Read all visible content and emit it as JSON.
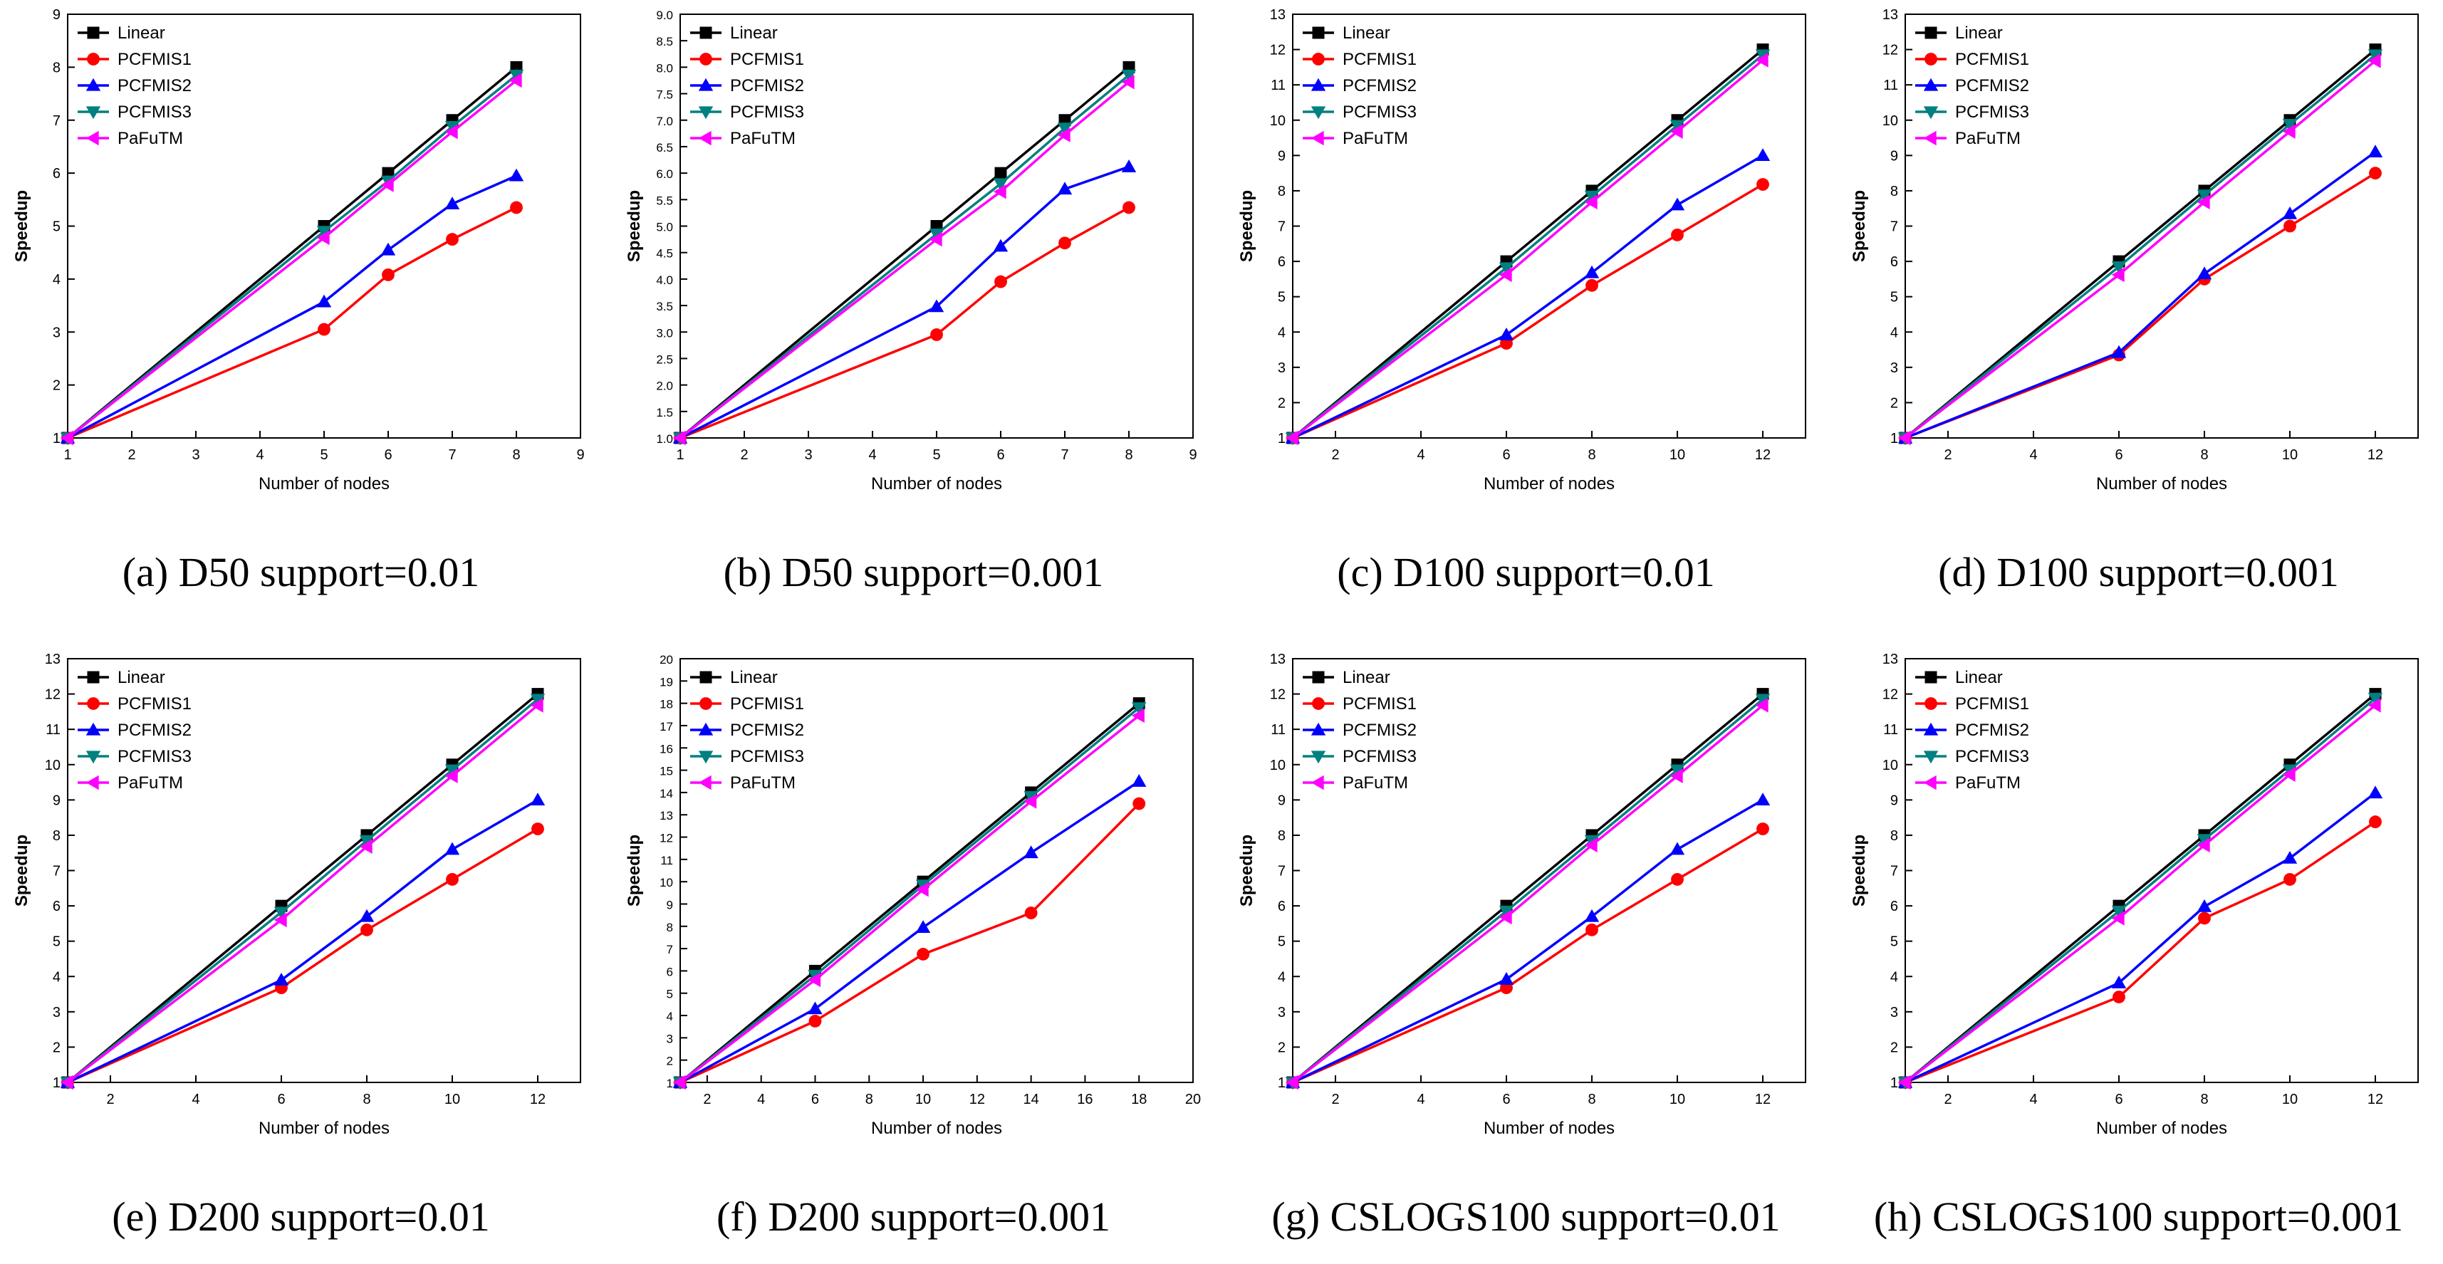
{
  "figure": {
    "legend_order": [
      "Linear",
      "PCFMIS1",
      "PCFMIS2",
      "PCFMIS3",
      "PaFuTM"
    ],
    "series_styles": {
      "Linear": {
        "color": "#000000",
        "marker": "square"
      },
      "PCFMIS1": {
        "color": "#ff0000",
        "marker": "circle"
      },
      "PCFMIS2": {
        "color": "#0000ff",
        "marker": "triangle-up"
      },
      "PCFMIS3": {
        "color": "#008080",
        "marker": "triangle-down"
      },
      "PaFuTM": {
        "color": "#ff00ff",
        "marker": "triangle-left"
      }
    }
  },
  "chart_data": [
    {
      "type": "line",
      "caption": "(a) D50 support=0.01",
      "xlabel": "Number of nodes",
      "ylabel": "Speedup",
      "xlim": [
        1,
        9
      ],
      "ylim": [
        1,
        9
      ],
      "xticks": [
        "1",
        "2",
        "3",
        "4",
        "5",
        "6",
        "7",
        "8",
        "9"
      ],
      "yticks": [
        "1",
        "2",
        "3",
        "4",
        "5",
        "6",
        "7",
        "8",
        "9"
      ],
      "x": [
        1,
        5,
        6,
        7,
        8
      ],
      "series": [
        {
          "name": "Linear",
          "values": [
            1,
            5,
            6,
            7,
            8
          ]
        },
        {
          "name": "PCFMIS1",
          "values": [
            1,
            3.05,
            4.08,
            4.75,
            5.35
          ]
        },
        {
          "name": "PCFMIS2",
          "values": [
            1,
            3.57,
            4.55,
            5.42,
            5.95
          ]
        },
        {
          "name": "PCFMIS3",
          "values": [
            1,
            4.9,
            5.85,
            6.88,
            7.85
          ]
        },
        {
          "name": "PaFuTM",
          "values": [
            1,
            4.78,
            5.78,
            6.78,
            7.75
          ]
        }
      ]
    },
    {
      "type": "line",
      "caption": "(b) D50 support=0.001",
      "xlabel": "Number of nodes",
      "ylabel": "Speedup",
      "xlim": [
        1,
        9
      ],
      "ylim": [
        1,
        9
      ],
      "xticks": [
        "1",
        "2",
        "3",
        "4",
        "5",
        "6",
        "7",
        "8",
        "9"
      ],
      "yticks": [
        "1.0",
        "1.5",
        "2.0",
        "2.5",
        "3.0",
        "3.5",
        "4.0",
        "4.5",
        "5.0",
        "5.5",
        "6.0",
        "6.5",
        "7.0",
        "7.5",
        "8.0",
        "8.5",
        "9.0"
      ],
      "x": [
        1,
        5,
        6,
        7,
        8
      ],
      "series": [
        {
          "name": "Linear",
          "values": [
            1,
            5,
            6,
            7,
            8
          ]
        },
        {
          "name": "PCFMIS1",
          "values": [
            1,
            2.95,
            3.95,
            4.68,
            5.35
          ]
        },
        {
          "name": "PCFMIS2",
          "values": [
            1,
            3.48,
            4.62,
            5.7,
            6.12
          ]
        },
        {
          "name": "PCFMIS3",
          "values": [
            1,
            4.85,
            5.8,
            6.85,
            7.85
          ]
        },
        {
          "name": "PaFuTM",
          "values": [
            1,
            4.75,
            5.65,
            6.72,
            7.72
          ]
        }
      ]
    },
    {
      "type": "line",
      "caption": "(c) D100 support=0.01",
      "xlabel": "Number of nodes",
      "ylabel": "Speedup",
      "xlim": [
        1,
        13
      ],
      "ylim": [
        1,
        13
      ],
      "xticks": [
        "2",
        "4",
        "6",
        "8",
        "10",
        "12"
      ],
      "yticks": [
        "1",
        "2",
        "3",
        "4",
        "5",
        "6",
        "7",
        "8",
        "9",
        "10",
        "11",
        "12",
        "13"
      ],
      "x": [
        1,
        6,
        8,
        10,
        12
      ],
      "series": [
        {
          "name": "Linear",
          "values": [
            1,
            6,
            8,
            10,
            12
          ]
        },
        {
          "name": "PCFMIS1",
          "values": [
            1,
            3.68,
            5.32,
            6.75,
            8.18
          ]
        },
        {
          "name": "PCFMIS2",
          "values": [
            1,
            3.92,
            5.68,
            7.6,
            9.0
          ]
        },
        {
          "name": "PCFMIS3",
          "values": [
            1,
            5.82,
            7.85,
            9.85,
            11.85
          ]
        },
        {
          "name": "PaFuTM",
          "values": [
            1,
            5.62,
            7.68,
            9.68,
            11.7
          ]
        }
      ]
    },
    {
      "type": "line",
      "caption": "(d) D100 support=0.001",
      "xlabel": "Number of nodes",
      "ylabel": "Speedup",
      "xlim": [
        1,
        13
      ],
      "ylim": [
        1,
        13
      ],
      "xticks": [
        "2",
        "4",
        "6",
        "8",
        "10",
        "12"
      ],
      "yticks": [
        "1",
        "2",
        "3",
        "4",
        "5",
        "6",
        "7",
        "8",
        "9",
        "10",
        "11",
        "12",
        "13"
      ],
      "x": [
        1,
        6,
        8,
        10,
        12
      ],
      "series": [
        {
          "name": "Linear",
          "values": [
            1,
            6,
            8,
            10,
            12
          ]
        },
        {
          "name": "PCFMIS1",
          "values": [
            1,
            3.35,
            5.5,
            7.0,
            8.5
          ]
        },
        {
          "name": "PCFMIS2",
          "values": [
            1,
            3.42,
            5.65,
            7.35,
            9.1
          ]
        },
        {
          "name": "PCFMIS3",
          "values": [
            1,
            5.85,
            7.88,
            9.88,
            11.85
          ]
        },
        {
          "name": "PaFuTM",
          "values": [
            1,
            5.62,
            7.68,
            9.68,
            11.68
          ]
        }
      ]
    },
    {
      "type": "line",
      "caption": "(e) D200 support=0.01",
      "xlabel": "Number of nodes",
      "ylabel": "Speedup",
      "xlim": [
        1,
        13
      ],
      "ylim": [
        1,
        13
      ],
      "xticks": [
        "2",
        "4",
        "6",
        "8",
        "10",
        "12"
      ],
      "yticks": [
        "1",
        "2",
        "3",
        "4",
        "5",
        "6",
        "7",
        "8",
        "9",
        "10",
        "11",
        "12",
        "13"
      ],
      "x": [
        1,
        6,
        8,
        10,
        12
      ],
      "series": [
        {
          "name": "Linear",
          "values": [
            1,
            6,
            8,
            10,
            12
          ]
        },
        {
          "name": "PCFMIS1",
          "values": [
            1,
            3.68,
            5.32,
            6.75,
            8.18
          ]
        },
        {
          "name": "PCFMIS2",
          "values": [
            1,
            3.9,
            5.7,
            7.6,
            9.0
          ]
        },
        {
          "name": "PCFMIS3",
          "values": [
            1,
            5.82,
            7.85,
            9.85,
            11.85
          ]
        },
        {
          "name": "PaFuTM",
          "values": [
            1,
            5.6,
            7.68,
            9.68,
            11.68
          ]
        }
      ]
    },
    {
      "type": "line",
      "caption": "(f) D200 support=0.001",
      "xlabel": "Number of nodes",
      "ylabel": "Speedup",
      "xlim": [
        1,
        20
      ],
      "ylim": [
        1,
        20
      ],
      "xticks": [
        "2",
        "4",
        "6",
        "8",
        "10",
        "12",
        "14",
        "16",
        "18",
        "20"
      ],
      "yticks": [
        "1",
        "2",
        "3",
        "4",
        "5",
        "6",
        "7",
        "8",
        "9",
        "10",
        "11",
        "12",
        "13",
        "14",
        "15",
        "16",
        "17",
        "18",
        "19",
        "20"
      ],
      "x": [
        1,
        6,
        10,
        14,
        18
      ],
      "series": [
        {
          "name": "Linear",
          "values": [
            1,
            6,
            10,
            14,
            18
          ]
        },
        {
          "name": "PCFMIS1",
          "values": [
            1,
            3.75,
            6.75,
            8.6,
            13.5
          ]
        },
        {
          "name": "PCFMIS2",
          "values": [
            1,
            4.3,
            7.95,
            11.3,
            14.5
          ]
        },
        {
          "name": "PCFMIS3",
          "values": [
            1,
            5.8,
            9.85,
            13.82,
            17.8
          ]
        },
        {
          "name": "PaFuTM",
          "values": [
            1,
            5.6,
            9.65,
            13.6,
            17.45
          ]
        }
      ]
    },
    {
      "type": "line",
      "caption": "(g) CSLOGS100 support=0.01",
      "xlabel": "Number of nodes",
      "ylabel": "Speedup",
      "xlim": [
        1,
        13
      ],
      "ylim": [
        1,
        13
      ],
      "xticks": [
        "2",
        "4",
        "6",
        "8",
        "10",
        "12"
      ],
      "yticks": [
        "1",
        "2",
        "3",
        "4",
        "5",
        "6",
        "7",
        "8",
        "9",
        "10",
        "11",
        "12",
        "13"
      ],
      "x": [
        1,
        6,
        8,
        10,
        12
      ],
      "series": [
        {
          "name": "Linear",
          "values": [
            1,
            6,
            8,
            10,
            12
          ]
        },
        {
          "name": "PCFMIS1",
          "values": [
            1,
            3.68,
            5.32,
            6.75,
            8.18
          ]
        },
        {
          "name": "PCFMIS2",
          "values": [
            1,
            3.92,
            5.7,
            7.6,
            9.0
          ]
        },
        {
          "name": "PCFMIS3",
          "values": [
            1,
            5.85,
            7.85,
            9.85,
            11.85
          ]
        },
        {
          "name": "PaFuTM",
          "values": [
            1,
            5.68,
            7.72,
            9.68,
            11.68
          ]
        }
      ]
    },
    {
      "type": "line",
      "caption": "(h) CSLOGS100 support=0.001",
      "xlabel": "Number of nodes",
      "ylabel": "Speedup",
      "xlim": [
        1,
        13
      ],
      "ylim": [
        1,
        13
      ],
      "xticks": [
        "2",
        "4",
        "6",
        "8",
        "10",
        "12"
      ],
      "yticks": [
        "1",
        "2",
        "3",
        "4",
        "5",
        "6",
        "7",
        "8",
        "9",
        "10",
        "11",
        "12",
        "13"
      ],
      "x": [
        1,
        6,
        8,
        10,
        12
      ],
      "series": [
        {
          "name": "Linear",
          "values": [
            1,
            6,
            8,
            10,
            12
          ]
        },
        {
          "name": "PCFMIS1",
          "values": [
            1,
            3.42,
            5.65,
            6.75,
            8.38
          ]
        },
        {
          "name": "PCFMIS2",
          "values": [
            1,
            3.82,
            5.98,
            7.35,
            9.2
          ]
        },
        {
          "name": "PCFMIS3",
          "values": [
            1,
            5.85,
            7.88,
            9.85,
            11.88
          ]
        },
        {
          "name": "PaFuTM",
          "values": [
            1,
            5.65,
            7.72,
            9.72,
            11.68
          ]
        }
      ]
    }
  ]
}
